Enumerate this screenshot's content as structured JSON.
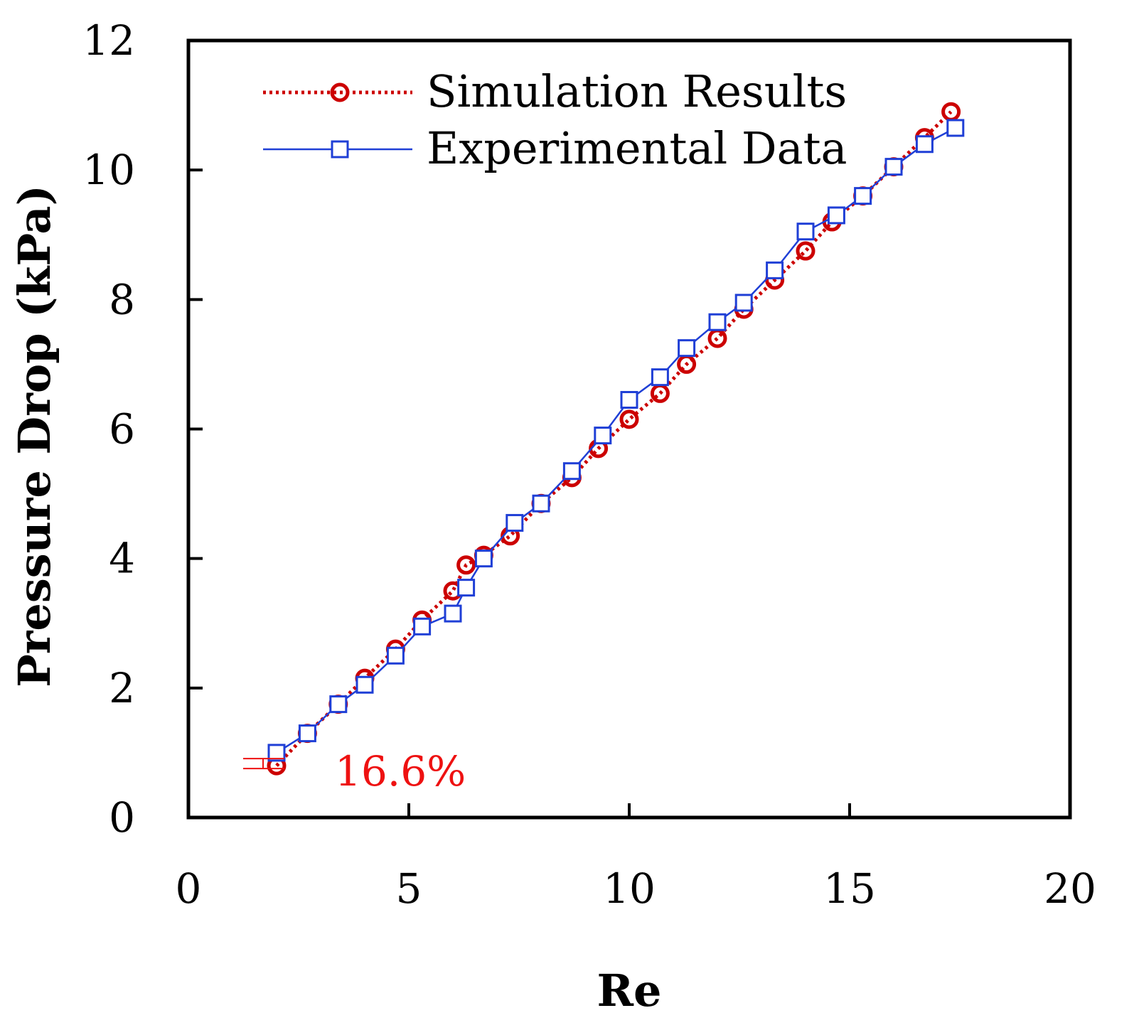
{
  "chart_data": {
    "type": "line",
    "title": "",
    "xlabel": "Re",
    "ylabel": "Pressure Drop (kPa)",
    "xlim": [
      0,
      20
    ],
    "ylim": [
      0,
      12
    ],
    "xticks": [
      "0",
      "5",
      "10",
      "15",
      "20"
    ],
    "yticks": [
      "0",
      "2",
      "4",
      "6",
      "8",
      "10",
      "12"
    ],
    "grid": false,
    "legend_position": "top-left",
    "series": [
      {
        "name": "Simulation Results",
        "color": "#cc0000",
        "marker": "circle",
        "line_style": "dotted",
        "x": [
          2.0,
          2.7,
          3.4,
          4.0,
          4.7,
          5.3,
          6.0,
          6.3,
          6.7,
          7.3,
          8.0,
          8.7,
          9.3,
          10.0,
          10.7,
          11.3,
          12.0,
          12.6,
          13.3,
          14.0,
          14.6,
          15.3,
          16.0,
          16.7,
          17.3
        ],
        "y": [
          0.8,
          1.3,
          1.75,
          2.15,
          2.6,
          3.05,
          3.5,
          3.9,
          4.05,
          4.35,
          4.85,
          5.25,
          5.7,
          6.15,
          6.55,
          7.0,
          7.4,
          7.85,
          8.3,
          8.75,
          9.2,
          9.6,
          10.05,
          10.5,
          10.9
        ]
      },
      {
        "name": "Experimental Data",
        "color": "#1f3fd6",
        "marker": "square",
        "line_style": "solid",
        "x": [
          2.0,
          2.7,
          3.4,
          4.0,
          4.7,
          5.3,
          6.0,
          6.3,
          6.7,
          7.4,
          8.0,
          8.7,
          9.4,
          10.0,
          10.7,
          11.3,
          12.0,
          12.6,
          13.3,
          14.0,
          14.7,
          15.3,
          16.0,
          16.7,
          17.4
        ],
        "y": [
          1.0,
          1.3,
          1.75,
          2.05,
          2.5,
          2.95,
          3.15,
          3.55,
          4.0,
          4.55,
          4.85,
          5.35,
          5.9,
          6.45,
          6.8,
          7.25,
          7.65,
          7.95,
          8.45,
          9.05,
          9.3,
          9.6,
          10.05,
          10.4,
          10.65
        ]
      }
    ],
    "annotations": [
      {
        "text": "16.6%",
        "color": "#ee1111",
        "x": 3.0,
        "y": 0.8
      }
    ]
  }
}
